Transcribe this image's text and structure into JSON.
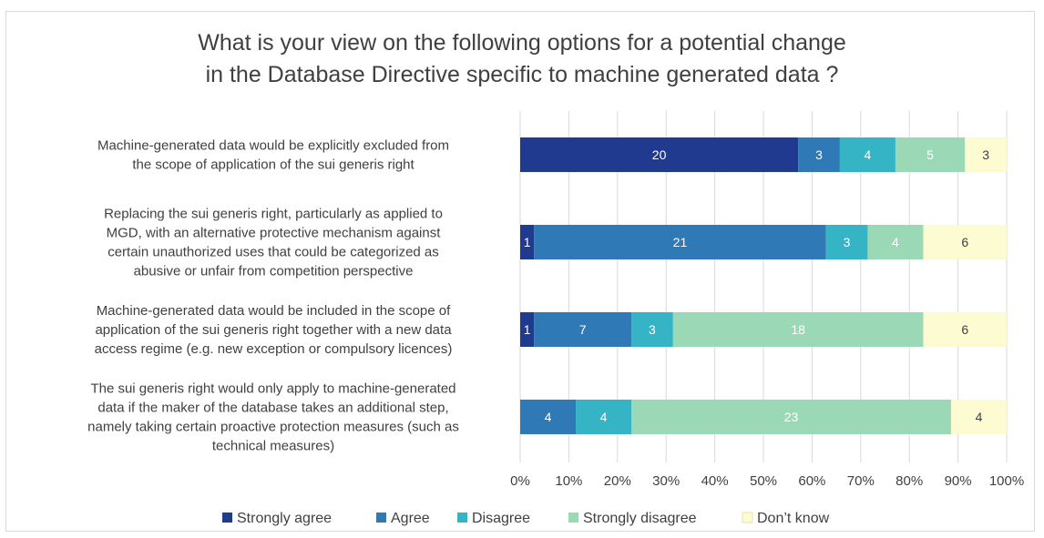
{
  "chart_data": {
    "type": "bar",
    "orientation": "horizontal",
    "stacked": "percent",
    "title": {
      "line1": "What is your view on the following options for a potential change",
      "line2": "in the Database Directive specific to machine generated data ?"
    },
    "categories": [
      [
        "Machine-generated data would be explicitly excluded from",
        "the scope of application of the sui generis right"
      ],
      [
        "Replacing the sui generis right, particularly as applied to",
        "MGD, with an alternative protective mechanism against",
        "certain unauthorized uses that could be categorized as",
        "abusive or unfair from competition perspective"
      ],
      [
        "Machine-generated data would be included in the scope of",
        "application of the sui generis right together with a new data",
        "access regime (e.g. new exception or compulsory licences)"
      ],
      [
        "The sui generis right would only apply to machine-generated",
        "data if the maker of the database takes an additional step,",
        "namely taking certain proactive protection measures (such as",
        "technical measures)"
      ]
    ],
    "series": [
      {
        "name": "Strongly agree",
        "color": "#203a8f",
        "label_color": "#ffffff",
        "values": [
          20,
          1,
          1,
          0
        ]
      },
      {
        "name": "Agree",
        "color": "#2f79b7",
        "label_color": "#ffffff",
        "values": [
          3,
          21,
          7,
          4
        ]
      },
      {
        "name": "Disagree",
        "color": "#35b4c6",
        "label_color": "#ffffff",
        "values": [
          4,
          3,
          3,
          4
        ]
      },
      {
        "name": "Strongly disagree",
        "color": "#9bd9b6",
        "label_color": "#ffffff",
        "values": [
          5,
          4,
          18,
          23
        ]
      },
      {
        "name": "Don’t know",
        "color": "#fdfbd2",
        "label_color": "#404040",
        "values": [
          3,
          6,
          6,
          4
        ]
      }
    ],
    "x_ticks": [
      "0%",
      "10%",
      "20%",
      "30%",
      "40%",
      "50%",
      "60%",
      "70%",
      "80%",
      "90%",
      "100%"
    ],
    "xlim": [
      0,
      100
    ],
    "grid": true,
    "legend_position": "bottom"
  }
}
